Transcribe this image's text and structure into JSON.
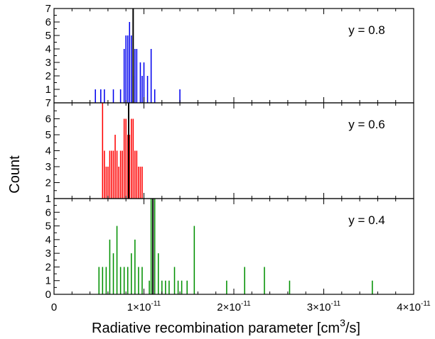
{
  "chart_data": {
    "type": "bar",
    "chart_subtype": "stacked-panel histograms",
    "xlabel_main": "Radiative recombination parameter [cm",
    "xlabel_sup": "3",
    "xlabel_end": "/s]",
    "ylabel": "Count",
    "x_unit_mantissa": "×10",
    "x_unit_exponent": "-11",
    "xlim": [
      0,
      4e-11
    ],
    "x_ticks": [
      {
        "value": 0,
        "mantissa": "0",
        "exp": ""
      },
      {
        "value": 1e-11,
        "mantissa": "1×10",
        "exp": "-11"
      },
      {
        "value": 2e-11,
        "mantissa": "2×10",
        "exp": "-11"
      },
      {
        "value": 3e-11,
        "mantissa": "3×10",
        "exp": "-11"
      },
      {
        "value": 4e-11,
        "mantissa": "4×10",
        "exp": "-11"
      }
    ],
    "y_tick_labels": [
      "0",
      "1",
      "2",
      "3",
      "4",
      "5",
      "6",
      "7"
    ],
    "bin_width": 2e-13,
    "panels": [
      {
        "name": "y = 0.8",
        "color": "#0000ee",
        "ylim": [
          0,
          7
        ],
        "y_ticks": [
          1,
          2,
          3,
          4,
          5,
          6,
          7
        ],
        "mean_line": 8.8e-12,
        "bars": [
          {
            "x": 4.6e-12,
            "count": 1
          },
          {
            "x": 5.2e-12,
            "count": 1
          },
          {
            "x": 5.6e-12,
            "count": 1
          },
          {
            "x": 6.6e-12,
            "count": 1
          },
          {
            "x": 7.4e-12,
            "count": 1
          },
          {
            "x": 7.8e-12,
            "count": 4
          },
          {
            "x": 8e-12,
            "count": 5
          },
          {
            "x": 8.2e-12,
            "count": 5
          },
          {
            "x": 8.4e-12,
            "count": 6
          },
          {
            "x": 8.6e-12,
            "count": 5
          },
          {
            "x": 8.8e-12,
            "count": 2
          },
          {
            "x": 9e-12,
            "count": 4
          },
          {
            "x": 9.2e-12,
            "count": 4
          },
          {
            "x": 9.6e-12,
            "count": 3
          },
          {
            "x": 9.8e-12,
            "count": 2
          },
          {
            "x": 1e-11,
            "count": 3
          },
          {
            "x": 1.04e-11,
            "count": 2
          },
          {
            "x": 1.08e-11,
            "count": 4
          },
          {
            "x": 1.12e-11,
            "count": 1
          },
          {
            "x": 1.4e-11,
            "count": 1
          }
        ]
      },
      {
        "name": "y = 0.6",
        "color": "#ff0000",
        "ylim": [
          1,
          7
        ],
        "y_ticks": [
          1,
          2,
          3,
          4,
          5,
          6,
          7
        ],
        "mean_line": 8.3e-12,
        "bars": [
          {
            "x": 5e-12,
            "count": 1
          },
          {
            "x": 5.4e-12,
            "count": 7
          },
          {
            "x": 5.6e-12,
            "count": 4
          },
          {
            "x": 5.8e-12,
            "count": 3
          },
          {
            "x": 6e-12,
            "count": 3
          },
          {
            "x": 6.2e-12,
            "count": 4
          },
          {
            "x": 6.4e-12,
            "count": 4
          },
          {
            "x": 6.6e-12,
            "count": 4
          },
          {
            "x": 6.8e-12,
            "count": 5
          },
          {
            "x": 7e-12,
            "count": 4
          },
          {
            "x": 7.2e-12,
            "count": 3
          },
          {
            "x": 7.4e-12,
            "count": 4
          },
          {
            "x": 7.6e-12,
            "count": 4
          },
          {
            "x": 7.8e-12,
            "count": 6
          },
          {
            "x": 8e-12,
            "count": 6
          },
          {
            "x": 8.2e-12,
            "count": 5
          },
          {
            "x": 8.4e-12,
            "count": 5
          },
          {
            "x": 8.6e-12,
            "count": 6
          },
          {
            "x": 8.8e-12,
            "count": 6
          },
          {
            "x": 9e-12,
            "count": 4
          },
          {
            "x": 9.2e-12,
            "count": 4
          },
          {
            "x": 9.4e-12,
            "count": 3
          },
          {
            "x": 9.6e-12,
            "count": 3
          },
          {
            "x": 9.8e-12,
            "count": 3
          },
          {
            "x": 1.02e-11,
            "count": 1
          },
          {
            "x": 1.08e-11,
            "count": 1
          },
          {
            "x": 1.12e-11,
            "count": 1
          },
          {
            "x": 1.18e-11,
            "count": 1
          },
          {
            "x": 1.22e-11,
            "count": 1
          },
          {
            "x": 1.26e-11,
            "count": 1
          },
          {
            "x": 1.84e-11,
            "count": 1
          },
          {
            "x": 2.46e-11,
            "count": 1
          }
        ]
      },
      {
        "name": "y = 0.4",
        "color": "#009000",
        "ylim": [
          0,
          7
        ],
        "y_ticks": [
          0,
          1,
          2,
          3,
          4,
          5,
          6
        ],
        "mean_line": 1.1e-11,
        "bars": [
          {
            "x": 5e-12,
            "count": 2
          },
          {
            "x": 5.4e-12,
            "count": 2
          },
          {
            "x": 5.8e-12,
            "count": 2
          },
          {
            "x": 6.2e-12,
            "count": 4
          },
          {
            "x": 6.6e-12,
            "count": 3
          },
          {
            "x": 7e-12,
            "count": 5
          },
          {
            "x": 7.4e-12,
            "count": 2
          },
          {
            "x": 7.8e-12,
            "count": 2
          },
          {
            "x": 8.2e-12,
            "count": 2
          },
          {
            "x": 8.6e-12,
            "count": 3
          },
          {
            "x": 9e-12,
            "count": 4
          },
          {
            "x": 9.4e-12,
            "count": 2
          },
          {
            "x": 9.8e-12,
            "count": 2
          },
          {
            "x": 1.06e-11,
            "count": 1
          },
          {
            "x": 1.08e-11,
            "count": 7
          },
          {
            "x": 1.12e-11,
            "count": 7
          },
          {
            "x": 1.16e-11,
            "count": 3
          },
          {
            "x": 1.2e-11,
            "count": 1
          },
          {
            "x": 1.24e-11,
            "count": 1
          },
          {
            "x": 1.28e-11,
            "count": 1
          },
          {
            "x": 1.34e-11,
            "count": 2
          },
          {
            "x": 1.38e-11,
            "count": 1
          },
          {
            "x": 1.42e-11,
            "count": 1
          },
          {
            "x": 1.48e-11,
            "count": 1
          },
          {
            "x": 1.56e-11,
            "count": 5
          },
          {
            "x": 1.92e-11,
            "count": 1
          },
          {
            "x": 2.12e-11,
            "count": 2
          },
          {
            "x": 2.34e-11,
            "count": 2
          },
          {
            "x": 2.62e-11,
            "count": 1
          },
          {
            "x": 3.54e-11,
            "count": 1
          }
        ]
      }
    ]
  }
}
